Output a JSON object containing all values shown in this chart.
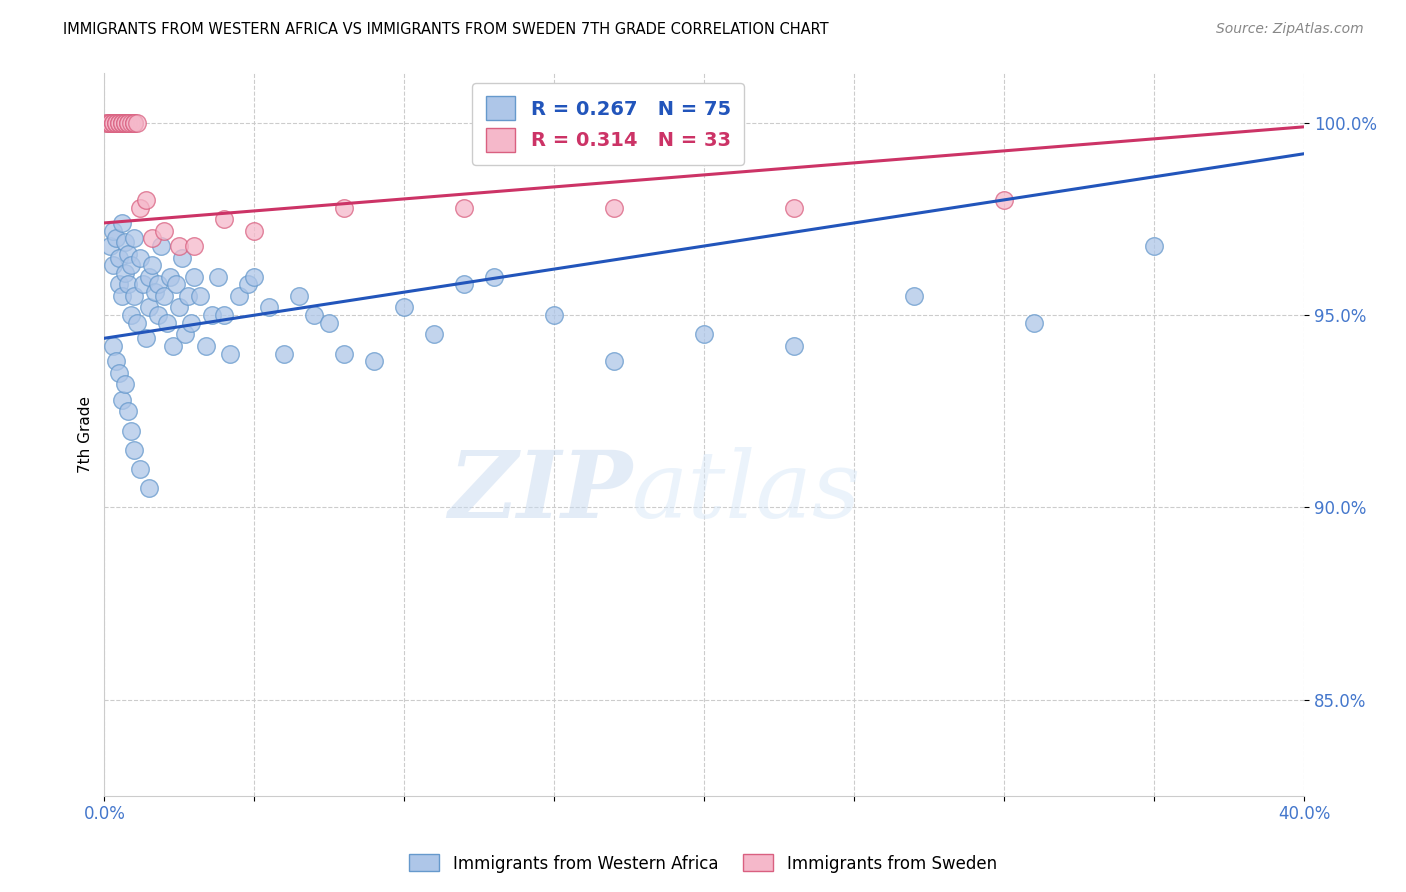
{
  "title": "IMMIGRANTS FROM WESTERN AFRICA VS IMMIGRANTS FROM SWEDEN 7TH GRADE CORRELATION CHART",
  "source": "Source: ZipAtlas.com",
  "ylabel": "7th Grade",
  "xlim": [
    0.0,
    0.4
  ],
  "ylim": [
    0.825,
    1.013
  ],
  "yticks": [
    0.85,
    0.9,
    0.95,
    1.0
  ],
  "xticks": [
    0.0,
    0.05,
    0.1,
    0.15,
    0.2,
    0.25,
    0.3,
    0.35,
    0.4
  ],
  "blue_R": 0.267,
  "blue_N": 75,
  "pink_R": 0.314,
  "pink_N": 33,
  "blue_color": "#aec6e8",
  "blue_edge": "#6699cc",
  "pink_color": "#f5b8ca",
  "pink_edge": "#d96080",
  "blue_line_color": "#2255bb",
  "pink_line_color": "#cc3366",
  "watermark_zip": "ZIP",
  "watermark_atlas": "atlas",
  "blue_line_x0": 0.0,
  "blue_line_y0": 0.944,
  "blue_line_x1": 0.4,
  "blue_line_y1": 0.992,
  "pink_line_x0": 0.0,
  "pink_line_y0": 0.974,
  "pink_line_x1": 0.4,
  "pink_line_y1": 0.999,
  "blue_x": [
    0.002,
    0.003,
    0.003,
    0.004,
    0.005,
    0.005,
    0.006,
    0.006,
    0.007,
    0.007,
    0.008,
    0.008,
    0.009,
    0.009,
    0.01,
    0.01,
    0.011,
    0.012,
    0.013,
    0.014,
    0.015,
    0.015,
    0.016,
    0.017,
    0.018,
    0.018,
    0.019,
    0.02,
    0.021,
    0.022,
    0.023,
    0.024,
    0.025,
    0.026,
    0.027,
    0.028,
    0.029,
    0.03,
    0.032,
    0.034,
    0.036,
    0.038,
    0.04,
    0.042,
    0.045,
    0.048,
    0.05,
    0.055,
    0.06,
    0.065,
    0.07,
    0.075,
    0.08,
    0.09,
    0.1,
    0.11,
    0.12,
    0.13,
    0.15,
    0.17,
    0.2,
    0.23,
    0.27,
    0.31,
    0.35,
    0.003,
    0.004,
    0.005,
    0.006,
    0.007,
    0.008,
    0.009,
    0.01,
    0.012,
    0.015
  ],
  "blue_y": [
    0.968,
    0.972,
    0.963,
    0.97,
    0.965,
    0.958,
    0.974,
    0.955,
    0.969,
    0.961,
    0.966,
    0.958,
    0.963,
    0.95,
    0.97,
    0.955,
    0.948,
    0.965,
    0.958,
    0.944,
    0.96,
    0.952,
    0.963,
    0.956,
    0.95,
    0.958,
    0.968,
    0.955,
    0.948,
    0.96,
    0.942,
    0.958,
    0.952,
    0.965,
    0.945,
    0.955,
    0.948,
    0.96,
    0.955,
    0.942,
    0.95,
    0.96,
    0.95,
    0.94,
    0.955,
    0.958,
    0.96,
    0.952,
    0.94,
    0.955,
    0.95,
    0.948,
    0.94,
    0.938,
    0.952,
    0.945,
    0.958,
    0.96,
    0.95,
    0.938,
    0.945,
    0.942,
    0.955,
    0.948,
    0.968,
    0.942,
    0.938,
    0.935,
    0.928,
    0.932,
    0.925,
    0.92,
    0.915,
    0.91,
    0.905
  ],
  "pink_x": [
    0.001,
    0.001,
    0.002,
    0.002,
    0.003,
    0.003,
    0.004,
    0.004,
    0.005,
    0.005,
    0.006,
    0.006,
    0.007,
    0.007,
    0.008,
    0.008,
    0.009,
    0.01,
    0.01,
    0.011,
    0.012,
    0.014,
    0.016,
    0.02,
    0.025,
    0.03,
    0.04,
    0.05,
    0.08,
    0.12,
    0.17,
    0.23,
    0.3
  ],
  "pink_y": [
    1.0,
    1.0,
    1.0,
    1.0,
    1.0,
    1.0,
    1.0,
    1.0,
    1.0,
    1.0,
    1.0,
    1.0,
    1.0,
    1.0,
    1.0,
    1.0,
    1.0,
    1.0,
    1.0,
    1.0,
    0.978,
    0.98,
    0.97,
    0.972,
    0.968,
    0.968,
    0.975,
    0.972,
    0.978,
    0.978,
    0.978,
    0.978,
    0.98
  ]
}
